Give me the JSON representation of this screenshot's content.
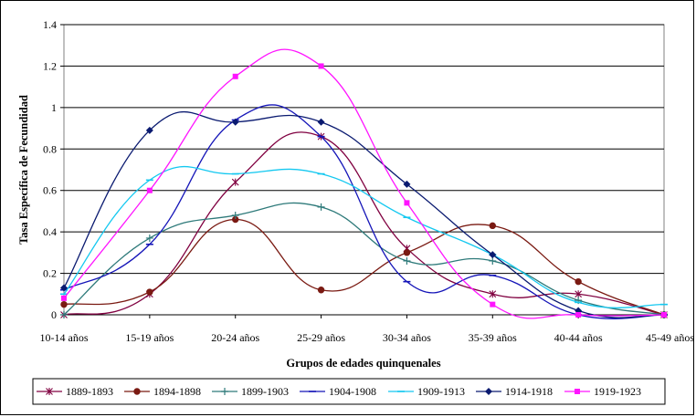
{
  "chart_data": {
    "type": "line",
    "smooth": true,
    "title": "",
    "xlabel": "Grupos de edades quinquenales",
    "ylabel": "Tasa Específica de Fecundidad",
    "categories": [
      "10-14 años",
      "15-19 años",
      "20-24 años",
      "25-29 años",
      "30-34 años",
      "35-39 años",
      "40-44 años",
      "45-49 años"
    ],
    "ylim": [
      0,
      1.4
    ],
    "yticks": [
      0,
      0.2,
      0.4,
      0.6,
      0.8,
      1,
      1.2,
      1.4
    ],
    "ytick_labels": [
      "0",
      "0.2",
      "0.4",
      "0.6",
      "0.8",
      "1",
      "1.2",
      "1.4"
    ],
    "grid": "horizontal",
    "legend_position": "bottom",
    "series": [
      {
        "name": "1889-1893",
        "color": "#800040",
        "marker": "star",
        "values": [
          0.0,
          0.1,
          0.64,
          0.86,
          0.32,
          0.1,
          0.1,
          0.0
        ]
      },
      {
        "name": "1894-1898",
        "color": "#7a1a12",
        "marker": "circle",
        "values": [
          0.05,
          0.11,
          0.46,
          0.12,
          0.3,
          0.43,
          0.16,
          0.0
        ]
      },
      {
        "name": "1899-1903",
        "color": "#2e7a7a",
        "marker": "plus",
        "values": [
          0.0,
          0.37,
          0.48,
          0.52,
          0.26,
          0.26,
          0.07,
          0.0
        ]
      },
      {
        "name": "1904-1908",
        "color": "#1515b8",
        "marker": "dash",
        "values": [
          0.12,
          0.34,
          0.94,
          0.86,
          0.16,
          0.19,
          0.0,
          0.0
        ]
      },
      {
        "name": "1909-1913",
        "color": "#14c8f0",
        "marker": "dash",
        "values": [
          0.1,
          0.65,
          0.68,
          0.68,
          0.47,
          0.29,
          0.06,
          0.05
        ]
      },
      {
        "name": "1914-1918",
        "color": "#0a1a70",
        "marker": "diamond",
        "values": [
          0.13,
          0.89,
          0.93,
          0.93,
          0.63,
          0.29,
          0.02,
          0.0
        ]
      },
      {
        "name": "1919-1923",
        "color": "#ff14ff",
        "marker": "square",
        "values": [
          0.08,
          0.6,
          1.15,
          1.2,
          0.54,
          0.05,
          0.0,
          0.0
        ]
      }
    ]
  }
}
